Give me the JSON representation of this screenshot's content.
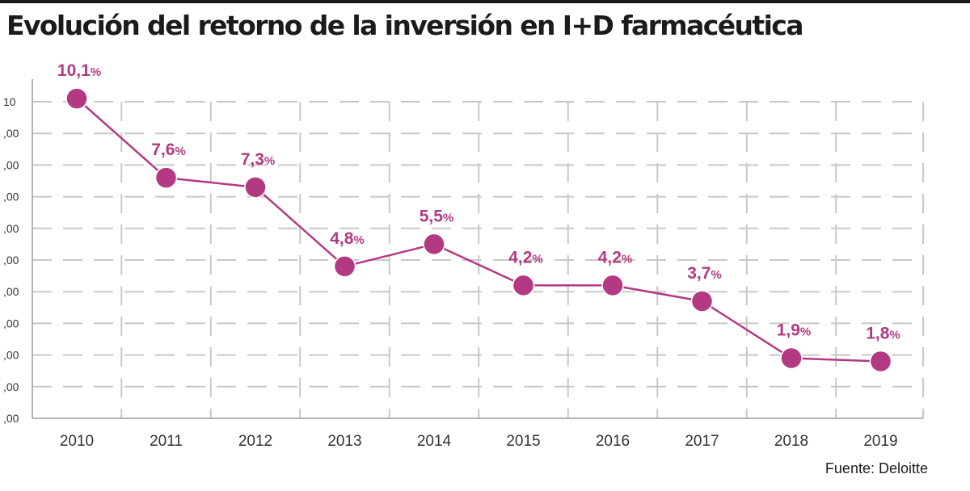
{
  "title": "Evolución del retorno de la inversión en I+D farmacéutica",
  "source": "Fuente: Deloitte",
  "colors": {
    "series": "#b33a82",
    "grid": "#c8c8c8",
    "axis": "#9a9a9a"
  },
  "chart_data": {
    "type": "line",
    "title": "Evolución del retorno de la inversión en I+D farmacéutica",
    "x": [
      "2010",
      "2011",
      "2012",
      "2013",
      "2014",
      "2015",
      "2016",
      "2017",
      "2018",
      "2019"
    ],
    "values": [
      10.1,
      7.6,
      7.3,
      4.8,
      5.5,
      4.2,
      4.2,
      3.7,
      1.9,
      1.8
    ],
    "data_labels": [
      {
        "num": "10,1",
        "unit": "%"
      },
      {
        "num": "7,6",
        "unit": "%"
      },
      {
        "num": "7,3",
        "unit": "%"
      },
      {
        "num": "4,8",
        "unit": "%"
      },
      {
        "num": "5,5",
        "unit": "%"
      },
      {
        "num": "4,2",
        "unit": "%"
      },
      {
        "num": "4,2",
        "unit": "%"
      },
      {
        "num": "3,7",
        "unit": "%"
      },
      {
        "num": "1,9",
        "unit": "%"
      },
      {
        "num": "1,8",
        "unit": "%"
      }
    ],
    "y_tick_labels": [
      "10",
      ",00",
      ",00",
      ",00",
      ",00",
      ",00",
      ",00",
      ",00",
      ",00",
      ",00",
      ",00"
    ],
    "ylim": [
      0,
      10
    ],
    "grid": true,
    "legend": "none"
  }
}
